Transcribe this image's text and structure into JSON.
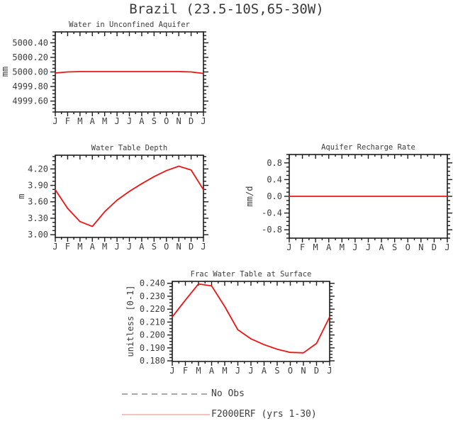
{
  "page_title": "Brazil (23.5-10S,65-30W)",
  "colors": {
    "line": "#ee1411",
    "legend_pink": "#f5c0c0",
    "dash_gray": "#a8a8a8",
    "frame": "#1c1c1c",
    "text": "#3d3d3d"
  },
  "legend": {
    "no_obs_label": "No Obs",
    "series_label": "F2000ERF (yrs 1-30)"
  },
  "chart_data": [
    {
      "type": "line",
      "title": "Water in Unconfined Aquifer",
      "ylabel": "mm",
      "x_labels": [
        "J",
        "F",
        "M",
        "A",
        "M",
        "J",
        "J",
        "A",
        "S",
        "O",
        "N",
        "D",
        "J"
      ],
      "yticks": [
        "4999.60",
        "4999.80",
        "5000.00",
        "5000.20",
        "5000.40"
      ],
      "ylim": [
        4999.45,
        5000.55
      ],
      "values": [
        4999.985,
        5000.0,
        5000.005,
        5000.005,
        5000.005,
        5000.005,
        5000.005,
        5000.005,
        5000.005,
        5000.005,
        5000.005,
        5000.0,
        4999.98
      ]
    },
    {
      "type": "line",
      "title": "Water Table Depth",
      "ylabel": "m",
      "x_labels": [
        "J",
        "F",
        "M",
        "A",
        "M",
        "J",
        "J",
        "A",
        "S",
        "O",
        "N",
        "D",
        "J"
      ],
      "yticks": [
        "3.00",
        "3.30",
        "3.60",
        "3.90",
        "4.20"
      ],
      "ylim": [
        2.95,
        4.45
      ],
      "values": [
        3.82,
        3.48,
        3.24,
        3.15,
        3.42,
        3.63,
        3.79,
        3.93,
        4.06,
        4.17,
        4.25,
        4.18,
        3.82
      ]
    },
    {
      "type": "line",
      "title": "Aquifer Recharge Rate",
      "ylabel": "mm/d",
      "x_labels": [
        "J",
        "F",
        "M",
        "A",
        "M",
        "J",
        "J",
        "A",
        "S",
        "O",
        "N",
        "D",
        "J"
      ],
      "yticks": [
        "-0.8",
        "-0.4",
        "0.0",
        "0.4",
        "0.8"
      ],
      "ylim": [
        -1.0,
        1.0
      ],
      "values": [
        0.0,
        0.0,
        0.0,
        0.0,
        0.0,
        0.0,
        0.0,
        0.0,
        0.0,
        0.0,
        0.0,
        0.0,
        0.0
      ]
    },
    {
      "type": "line",
      "title": "Frac Water Table at Surface",
      "ylabel": "unitless [0-1]",
      "x_labels": [
        "J",
        "F",
        "M",
        "A",
        "M",
        "J",
        "J",
        "A",
        "S",
        "O",
        "N",
        "D",
        "J"
      ],
      "yticks": [
        "0.180",
        "0.190",
        "0.200",
        "0.210",
        "0.220",
        "0.230",
        "0.240"
      ],
      "ylim": [
        0.1795,
        0.2415
      ],
      "values": [
        0.214,
        0.227,
        0.2395,
        0.238,
        0.222,
        0.204,
        0.197,
        0.1925,
        0.189,
        0.1865,
        0.1862,
        0.1935,
        0.214
      ]
    }
  ]
}
